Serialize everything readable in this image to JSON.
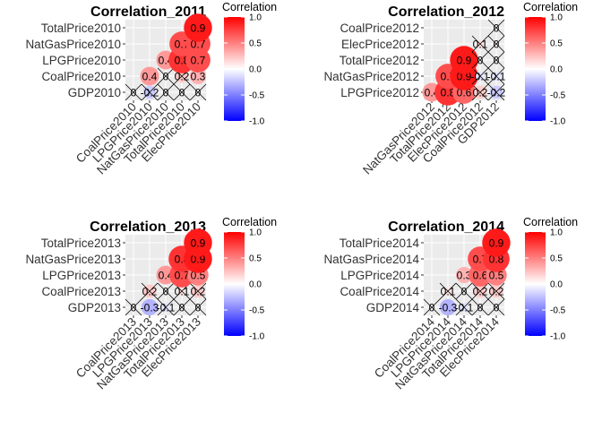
{
  "legend": {
    "title": "Correlation",
    "ticks": [
      "1.0",
      "0.5",
      "0.0",
      "-0.5",
      "-1.0"
    ],
    "tick_values": [
      1.0,
      0.5,
      0.0,
      -0.5,
      -1.0
    ],
    "colors": {
      "high": "#ff0000",
      "mid": "#ffffff",
      "low": "#0000ff"
    }
  },
  "chart_data": [
    {
      "type": "heatmap",
      "title": "Correlation_2011",
      "variables": [
        "GDP2010",
        "CoalPrice2010",
        "LPGPrice2010",
        "NatGasPrice2010",
        "TotalPrice2010",
        "ElecPrice2010"
      ],
      "y_labels": [
        "GDP2010",
        "CoalPrice2010",
        "LPGPrice2010",
        "NatGasPrice2010",
        "TotalPrice2010"
      ],
      "x_labels": [
        "CoalPrice2010",
        "LPGPrice2010",
        "NatGasPrice2010",
        "TotalPrice2010",
        "ElecPrice2010"
      ],
      "cells": [
        {
          "row": 0,
          "col": 0,
          "value": 0.0,
          "label": "0",
          "crossed": true
        },
        {
          "row": 0,
          "col": 1,
          "value": -0.2,
          "label": "-0.2",
          "crossed": true
        },
        {
          "row": 0,
          "col": 2,
          "value": 0.0,
          "label": "0",
          "crossed": true
        },
        {
          "row": 0,
          "col": 3,
          "value": 0.0,
          "label": "0",
          "crossed": true
        },
        {
          "row": 0,
          "col": 4,
          "value": 0.0,
          "label": "0",
          "crossed": true
        },
        {
          "row": 1,
          "col": 1,
          "value": 0.4,
          "label": "0.4",
          "crossed": false
        },
        {
          "row": 1,
          "col": 2,
          "value": 0.0,
          "label": "0",
          "crossed": true
        },
        {
          "row": 1,
          "col": 3,
          "value": 0.2,
          "label": "0.2",
          "crossed": true
        },
        {
          "row": 1,
          "col": 4,
          "value": 0.3,
          "label": "0.3",
          "crossed": false
        },
        {
          "row": 2,
          "col": 2,
          "value": 0.4,
          "label": "0.4",
          "crossed": false
        },
        {
          "row": 2,
          "col": 3,
          "value": 0.8,
          "label": "0.8",
          "crossed": false
        },
        {
          "row": 2,
          "col": 4,
          "value": 0.7,
          "label": "0.7",
          "crossed": false
        },
        {
          "row": 3,
          "col": 3,
          "value": 0.7,
          "label": "0.7",
          "crossed": false
        },
        {
          "row": 3,
          "col": 4,
          "value": 0.7,
          "label": "0.7",
          "crossed": false
        },
        {
          "row": 4,
          "col": 4,
          "value": 0.9,
          "label": "0.9",
          "crossed": false
        }
      ]
    },
    {
      "type": "heatmap",
      "title": "Correlation_2012",
      "variables": [
        "LPGPrice2012",
        "NatGasPrice2012",
        "TotalPrice2012",
        "ElecPrice2012",
        "CoalPrice2012",
        "GDP2012"
      ],
      "y_labels": [
        "LPGPrice2012",
        "NatGasPrice2012",
        "TotalPrice2012",
        "ElecPrice2012",
        "CoalPrice2012"
      ],
      "x_labels": [
        "NatGasPrice2012",
        "TotalPrice2012",
        "ElecPrice2012",
        "CoalPrice2012",
        "GDP2012"
      ],
      "cells": [
        {
          "row": 0,
          "col": 0,
          "value": 0.4,
          "label": "0.4",
          "crossed": false
        },
        {
          "row": 0,
          "col": 1,
          "value": 0.8,
          "label": "0.8",
          "crossed": false
        },
        {
          "row": 0,
          "col": 2,
          "value": 0.6,
          "label": "0.6",
          "crossed": false
        },
        {
          "row": 0,
          "col": 3,
          "value": 0.2,
          "label": "0.2",
          "crossed": true
        },
        {
          "row": 0,
          "col": 4,
          "value": -0.2,
          "label": "-0.2",
          "crossed": true
        },
        {
          "row": 1,
          "col": 1,
          "value": 0.7,
          "label": "0.7",
          "crossed": false
        },
        {
          "row": 1,
          "col": 2,
          "value": 0.9,
          "label": "0.9",
          "crossed": false
        },
        {
          "row": 1,
          "col": 3,
          "value": -0.1,
          "label": "-0.1",
          "crossed": true
        },
        {
          "row": 1,
          "col": 4,
          "value": -0.1,
          "label": "-0.1",
          "crossed": true
        },
        {
          "row": 2,
          "col": 2,
          "value": 0.9,
          "label": "0.9",
          "crossed": false
        },
        {
          "row": 2,
          "col": 3,
          "value": 0.0,
          "label": "0",
          "crossed": true
        },
        {
          "row": 2,
          "col": 4,
          "value": 0.0,
          "label": "0",
          "crossed": true
        },
        {
          "row": 3,
          "col": 3,
          "value": 0.1,
          "label": "0.1",
          "crossed": true
        },
        {
          "row": 3,
          "col": 4,
          "value": 0.0,
          "label": "0",
          "crossed": true
        },
        {
          "row": 4,
          "col": 4,
          "value": 0.0,
          "label": "0",
          "crossed": true
        }
      ]
    },
    {
      "type": "heatmap",
      "title": "Correlation_2013",
      "variables": [
        "GDP2013",
        "CoalPrice2013",
        "LPGPrice2013",
        "NatGasPrice2013",
        "TotalPrice2013",
        "ElecPrice2013"
      ],
      "y_labels": [
        "GDP2013",
        "CoalPrice2013",
        "LPGPrice2013",
        "NatGasPrice2013",
        "TotalPrice2013"
      ],
      "x_labels": [
        "CoalPrice2013",
        "LPGPrice2013",
        "NatGasPrice2013",
        "TotalPrice2013",
        "ElecPrice2013"
      ],
      "cells": [
        {
          "row": 0,
          "col": 0,
          "value": 0.0,
          "label": "0",
          "crossed": true
        },
        {
          "row": 0,
          "col": 1,
          "value": -0.3,
          "label": "-0.3",
          "crossed": false
        },
        {
          "row": 0,
          "col": 2,
          "value": -0.1,
          "label": "-0.1",
          "crossed": true
        },
        {
          "row": 0,
          "col": 3,
          "value": 0.0,
          "label": "0",
          "crossed": true
        },
        {
          "row": 0,
          "col": 4,
          "value": 0.0,
          "label": "0",
          "crossed": true
        },
        {
          "row": 1,
          "col": 1,
          "value": 0.2,
          "label": "0.2",
          "crossed": true
        },
        {
          "row": 1,
          "col": 2,
          "value": 0.0,
          "label": "0",
          "crossed": true
        },
        {
          "row": 1,
          "col": 3,
          "value": 0.1,
          "label": "0.1",
          "crossed": true
        },
        {
          "row": 1,
          "col": 4,
          "value": 0.2,
          "label": "0.2",
          "crossed": true
        },
        {
          "row": 2,
          "col": 2,
          "value": 0.4,
          "label": "0.4",
          "crossed": false
        },
        {
          "row": 2,
          "col": 3,
          "value": 0.7,
          "label": "0.7",
          "crossed": false
        },
        {
          "row": 2,
          "col": 4,
          "value": 0.5,
          "label": "0.5",
          "crossed": false
        },
        {
          "row": 3,
          "col": 3,
          "value": 0.8,
          "label": "0.8",
          "crossed": false
        },
        {
          "row": 3,
          "col": 4,
          "value": 0.9,
          "label": "0.9",
          "crossed": false
        },
        {
          "row": 4,
          "col": 4,
          "value": 0.9,
          "label": "0.9",
          "crossed": false
        }
      ]
    },
    {
      "type": "heatmap",
      "title": "Correlation_2014",
      "variables": [
        "GDP2014",
        "CoalPrice2014",
        "LPGPrice2014",
        "NatGasPrice2014",
        "TotalPrice2014",
        "ElecPrice2014"
      ],
      "y_labels": [
        "GDP2014",
        "CoalPrice2014",
        "LPGPrice2014",
        "NatGasPrice2014",
        "TotalPrice2014"
      ],
      "x_labels": [
        "CoalPrice2014",
        "LPGPrice2014",
        "NatGasPrice2014",
        "TotalPrice2014",
        "ElecPrice2014"
      ],
      "cells": [
        {
          "row": 0,
          "col": 0,
          "value": 0.0,
          "label": "0",
          "crossed": true
        },
        {
          "row": 0,
          "col": 1,
          "value": -0.3,
          "label": "-0.3",
          "crossed": false
        },
        {
          "row": 0,
          "col": 2,
          "value": -0.1,
          "label": "-0.1",
          "crossed": true
        },
        {
          "row": 0,
          "col": 3,
          "value": 0.0,
          "label": "0",
          "crossed": true
        },
        {
          "row": 0,
          "col": 4,
          "value": 0.0,
          "label": "0",
          "crossed": true
        },
        {
          "row": 1,
          "col": 1,
          "value": 0.1,
          "label": "0.1",
          "crossed": true
        },
        {
          "row": 1,
          "col": 2,
          "value": 0.0,
          "label": "0",
          "crossed": true
        },
        {
          "row": 1,
          "col": 3,
          "value": 0.2,
          "label": "0.2",
          "crossed": true
        },
        {
          "row": 1,
          "col": 4,
          "value": 0.2,
          "label": "0.2",
          "crossed": true
        },
        {
          "row": 2,
          "col": 2,
          "value": 0.3,
          "label": "0.3",
          "crossed": false
        },
        {
          "row": 2,
          "col": 3,
          "value": 0.6,
          "label": "0.6",
          "crossed": false
        },
        {
          "row": 2,
          "col": 4,
          "value": 0.5,
          "label": "0.5",
          "crossed": false
        },
        {
          "row": 3,
          "col": 3,
          "value": 0.7,
          "label": "0.7",
          "crossed": false
        },
        {
          "row": 3,
          "col": 4,
          "value": 0.8,
          "label": "0.8",
          "crossed": false
        },
        {
          "row": 4,
          "col": 4,
          "value": 0.9,
          "label": "0.9",
          "crossed": false
        }
      ]
    }
  ]
}
